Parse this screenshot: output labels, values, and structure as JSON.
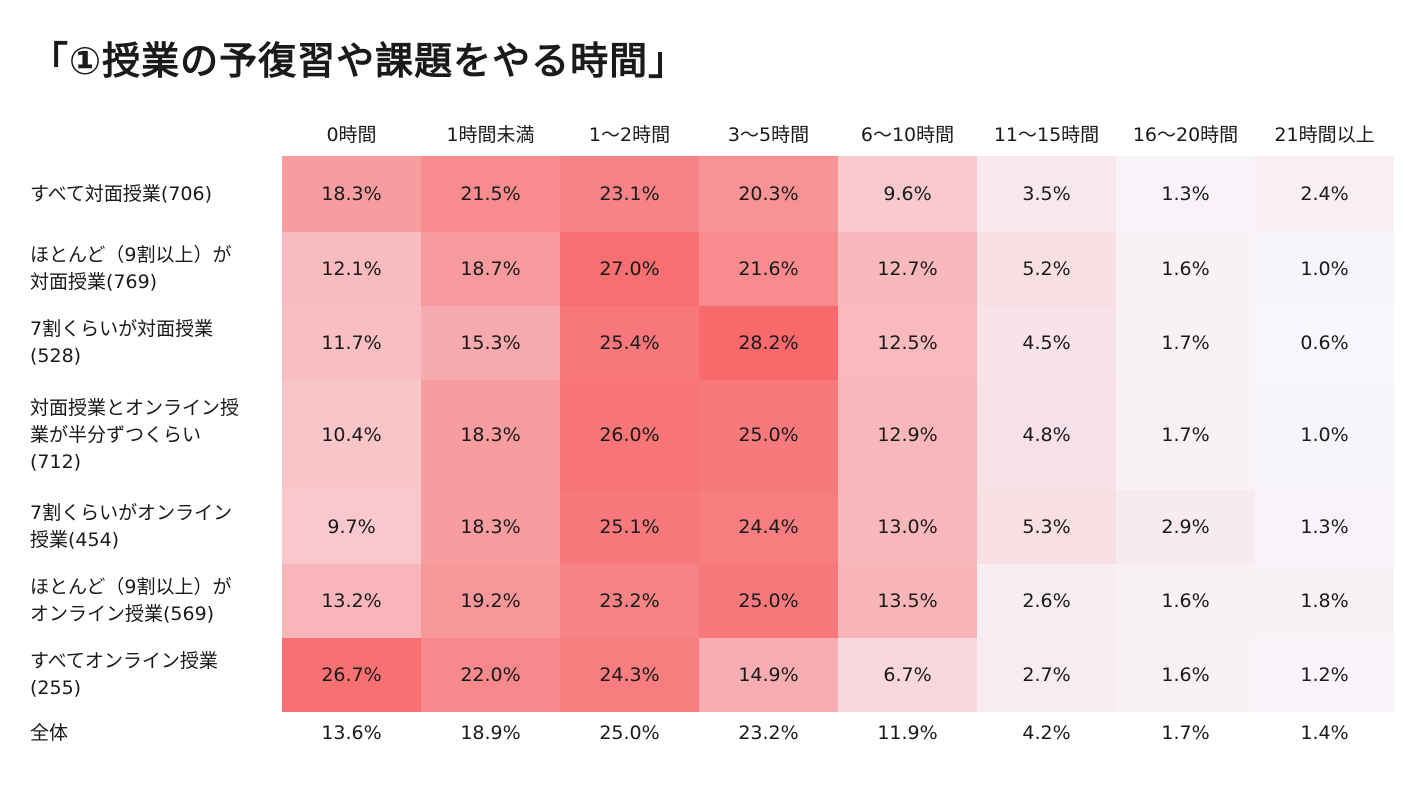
{
  "title": "「①授業の予復習や課題をやる時間」",
  "chart_data": {
    "type": "heatmap",
    "title": "「①授業の予復習や課題をやる時間」",
    "columns": [
      "0時間",
      "1時間未満",
      "1〜2時間",
      "3〜5時間",
      "6〜10時間",
      "11〜15時間",
      "16〜20時間",
      "21時間以上"
    ],
    "rows": [
      {
        "label": "すべて対面授業(706)",
        "values": [
          18.3,
          21.5,
          23.1,
          20.3,
          9.6,
          3.5,
          1.3,
          2.4
        ]
      },
      {
        "label": "ほとんど（9割以上）が\n対面授業(769)",
        "values": [
          12.1,
          18.7,
          27.0,
          21.6,
          12.7,
          5.2,
          1.6,
          1.0
        ]
      },
      {
        "label": "7割くらいが対面授業\n(528)",
        "values": [
          11.7,
          15.3,
          25.4,
          28.2,
          12.5,
          4.5,
          1.7,
          0.6
        ]
      },
      {
        "label": "対面授業とオンライン授\n業が半分ずつくらい\n(712)",
        "values": [
          10.4,
          18.3,
          26.0,
          25.0,
          12.9,
          4.8,
          1.7,
          1.0
        ]
      },
      {
        "label": "7割くらいがオンライン\n授業(454)",
        "values": [
          9.7,
          18.3,
          25.1,
          24.4,
          13.0,
          5.3,
          2.9,
          1.3
        ]
      },
      {
        "label": "ほとんど（9割以上）が\nオンライン授業(569)",
        "values": [
          13.2,
          19.2,
          23.2,
          25.0,
          13.5,
          2.6,
          1.6,
          1.8
        ]
      },
      {
        "label": "すべてオンライン授業\n(255)",
        "values": [
          26.7,
          22.0,
          24.3,
          14.9,
          6.7,
          2.7,
          1.6,
          1.2
        ]
      }
    ],
    "total": {
      "label": "全体",
      "values": [
        13.6,
        18.9,
        25.0,
        23.2,
        11.9,
        4.2,
        1.7,
        1.4
      ]
    },
    "unit": "%",
    "color_low": "#f8f7fc",
    "color_high": "#f7696b"
  }
}
